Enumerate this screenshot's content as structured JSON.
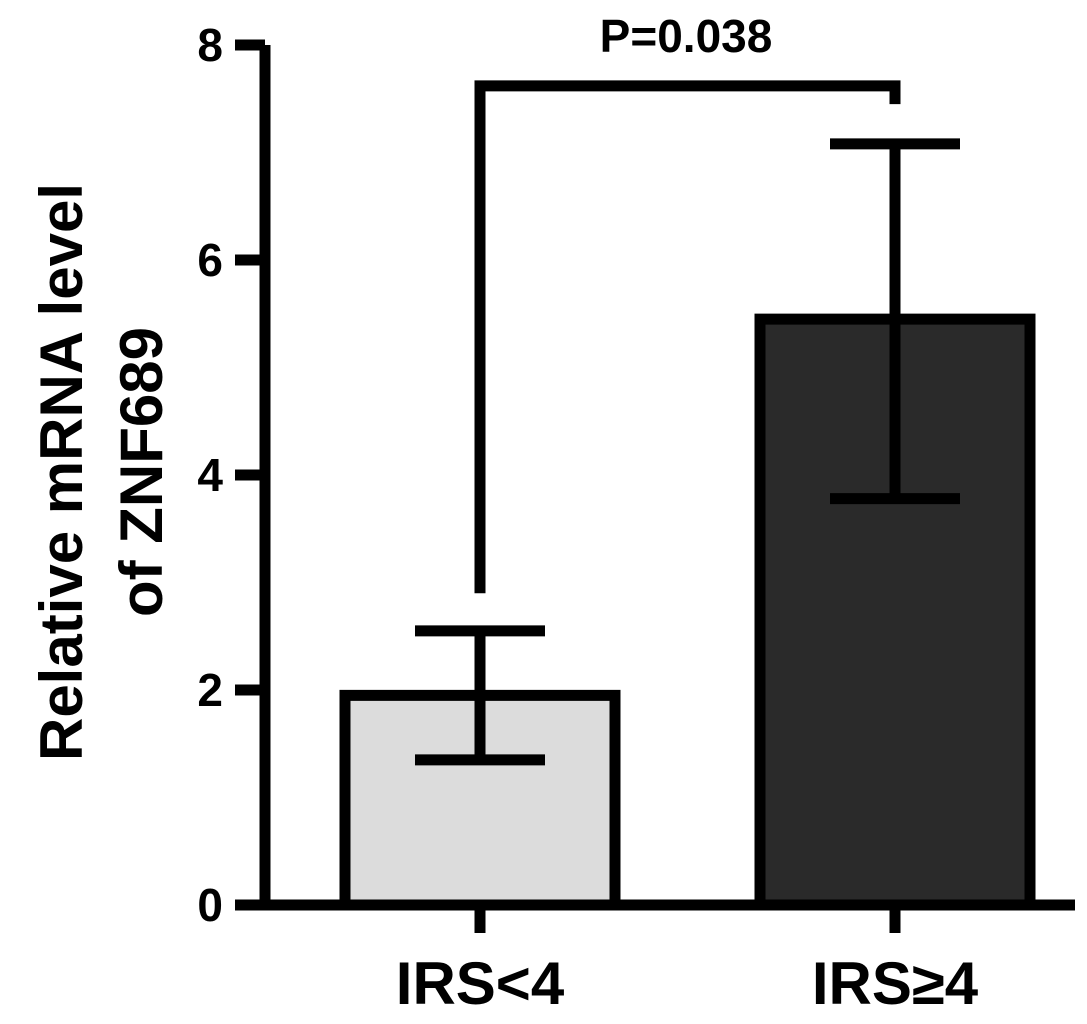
{
  "chart_data": {
    "type": "bar",
    "categories": [
      "IRS<4",
      "IRS≥4"
    ],
    "values": [
      1.95,
      5.45
    ],
    "error_upper": [
      2.55,
      7.08
    ],
    "error_lower": [
      1.35,
      3.78
    ],
    "bar_colors": [
      "#dcdcdc",
      "#2a2a2a"
    ],
    "ylabel_lines": [
      "Relative mRNA level",
      "of ZNF689"
    ],
    "ylim": [
      0,
      8
    ],
    "yticks": [
      0,
      2,
      4,
      6,
      8
    ],
    "ytick_labels": [
      "0",
      "2",
      "4",
      "6",
      "8"
    ],
    "significance": {
      "label": "P=0.038",
      "from": 0,
      "to": 1,
      "line_y": 7.62,
      "left_bottom": 2.9,
      "right_bottom": 7.45
    }
  }
}
